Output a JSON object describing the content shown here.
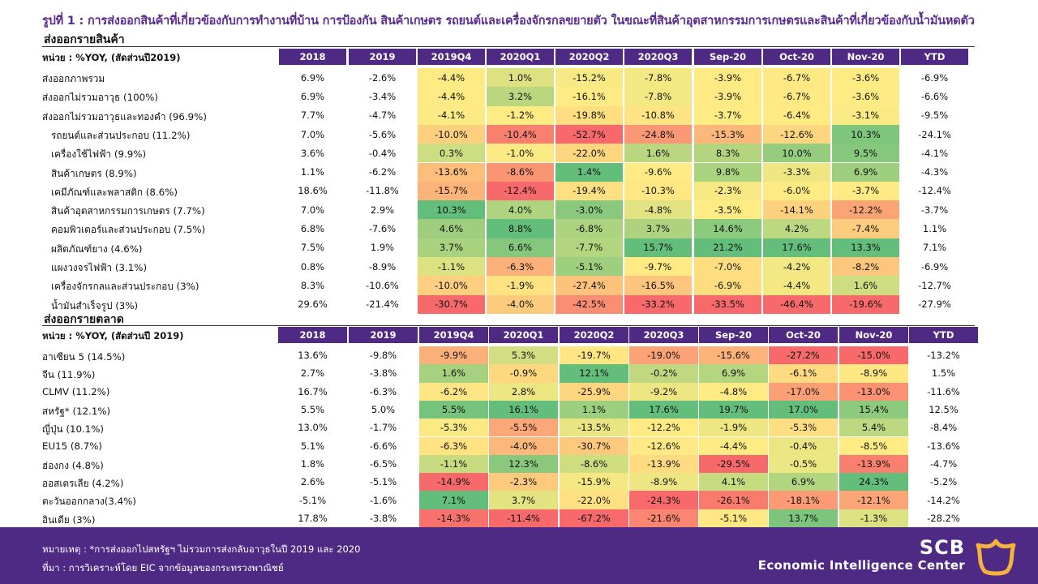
{
  "title": "รูปที่  1 : การส่งออกสินค้าที่เกี่ยวข้องกับการทำงานที่บ้าน  การป้องกัน  สินค้าเกษตร  รถยนต์และเครื่องจักรกลขยายตัว  ในขณะที่สินค้าอุตสาหกรรมการเกษตรและสินค้าที่เกี่ยวข้องกับน้ำมันหดตัว",
  "colors": {
    "purple": "#4e2a84",
    "green_strong": "#63be7b",
    "yellow": "#ffeb84",
    "red_strong": "#f8696b"
  },
  "products": {
    "heading": "ส่งออกรายสินค้า",
    "unit": "หน่วย : %YOY, (สัดส่วนปี2019)",
    "columns": [
      "2018",
      "2019",
      "2019Q4",
      "2020Q1",
      "2020Q2",
      "2020Q3",
      "Sep-20",
      "Oct-20",
      "Nov-20",
      "YTD"
    ],
    "rows": [
      {
        "label": "ส่งออกภาพรวม",
        "values": [
          "6.9%",
          "-2.6%",
          "-4.4%",
          "1.0%",
          "-15.2%",
          "-7.8%",
          "-3.9%",
          "-6.7%",
          "-3.6%",
          "-6.9%"
        ]
      },
      {
        "label": "ส่งออกไม่รวมอาวุธ (100%)",
        "values": [
          "6.9%",
          "-3.4%",
          "-4.4%",
          "3.2%",
          "-16.1%",
          "-7.8%",
          "-3.9%",
          "-6.7%",
          "-3.6%",
          "-6.6%"
        ]
      },
      {
        "label": "ส่งออกไม่รวมอาวุธและทองคำ (96.9%)",
        "values": [
          "7.7%",
          "-4.7%",
          "-4.1%",
          "-1.2%",
          "-19.8%",
          "-10.8%",
          "-3.7%",
          "-6.4%",
          "-3.1%",
          "-9.5%"
        ]
      },
      {
        "label": "รถยนต์และส่วนประกอบ (11.2%)",
        "values": [
          "7.0%",
          "-5.6%",
          "-10.0%",
          "-10.4%",
          "-52.7%",
          "-24.8%",
          "-15.3%",
          "-12.6%",
          "10.3%",
          "-24.1%"
        ]
      },
      {
        "label": "เครื่องใช้ไฟฟ้า (9.9%)",
        "values": [
          "3.6%",
          "-0.4%",
          "0.3%",
          "-1.0%",
          "-22.0%",
          "1.6%",
          "8.3%",
          "10.0%",
          "9.5%",
          "-4.1%"
        ]
      },
      {
        "label": "สินค้าเกษตร   (8.9%)",
        "values": [
          "1.1%",
          "-6.2%",
          "-13.6%",
          "-8.6%",
          "1.4%",
          "-9.6%",
          "9.8%",
          "-3.3%",
          "6.9%",
          "-4.3%"
        ]
      },
      {
        "label": "เคมีภัณฑ์และพลาสติก (8.6%)",
        "values": [
          "18.6%",
          "-11.8%",
          "-15.7%",
          "-12.4%",
          "-19.4%",
          "-10.3%",
          "-2.3%",
          "-6.0%",
          "-3.7%",
          "-12.4%"
        ]
      },
      {
        "label": "สินค้าอุตสาหกรรมการเกษตร  (7.7%)",
        "values": [
          "7.0%",
          "2.9%",
          "10.3%",
          "4.0%",
          "-3.0%",
          "-4.8%",
          "-3.5%",
          "-14.1%",
          "-12.2%",
          "-3.7%"
        ]
      },
      {
        "label": "คอมพิวเตอร์และส่วนประกอบ (7.5%)",
        "values": [
          "6.8%",
          "-7.6%",
          "4.6%",
          "8.8%",
          "-6.8%",
          "3.7%",
          "14.6%",
          "4.2%",
          "-7.4%",
          "1.1%"
        ]
      },
      {
        "label": "ผลิตภัณฑ์ยาง (4.6%)",
        "values": [
          "7.5%",
          "1.9%",
          "3.7%",
          "6.6%",
          "-7.7%",
          "15.7%",
          "21.2%",
          "17.6%",
          "13.3%",
          "7.1%"
        ]
      },
      {
        "label": "แผงวงจรไฟฟ้า   (3.1%)",
        "values": [
          "0.8%",
          "-8.9%",
          "-1.1%",
          "-6.3%",
          "-5.1%",
          "-9.7%",
          "-7.0%",
          "-4.2%",
          "-8.2%",
          "-6.9%"
        ]
      },
      {
        "label": "เครื่องจักรกลและส่วนประกอบ (3%)",
        "values": [
          "8.3%",
          "-10.6%",
          "-10.0%",
          "-1.9%",
          "-27.4%",
          "-16.5%",
          "-6.9%",
          "-4.4%",
          "1.6%",
          "-12.7%"
        ]
      },
      {
        "label": "น้ำมันสำเร็จรูป  (3%)",
        "values": [
          "29.6%",
          "-21.4%",
          "-30.7%",
          "-4.0%",
          "-42.5%",
          "-33.2%",
          "-33.5%",
          "-46.4%",
          "-19.6%",
          "-27.9%"
        ]
      }
    ]
  },
  "markets": {
    "heading": "ส่งออกรายตลาด",
    "unit": "หน่วย : %YOY, (สัดส่วนปี 2019)",
    "columns": [
      "2018",
      "2019",
      "2019Q4",
      "2020Q1",
      "2020Q2",
      "2020Q3",
      "Sep-20",
      "Oct-20",
      "Nov-20",
      "YTD"
    ],
    "rows": [
      {
        "label": "อาเซียน 5 (14.5%)",
        "values": [
          "13.6%",
          "-9.8%",
          "-9.9%",
          "5.3%",
          "-19.7%",
          "-19.0%",
          "-15.6%",
          "-27.2%",
          "-15.0%",
          "-13.2%"
        ]
      },
      {
        "label": "จีน (11.9%)",
        "values": [
          "2.7%",
          "-3.8%",
          "1.6%",
          "-0.9%",
          "12.1%",
          "-0.2%",
          "6.9%",
          "-6.1%",
          "-8.9%",
          "1.5%"
        ]
      },
      {
        "label": "CLMV (11.2%)",
        "values": [
          "16.7%",
          "-6.3%",
          "-6.2%",
          "2.8%",
          "-25.9%",
          "-9.2%",
          "-4.8%",
          "-17.0%",
          "-13.0%",
          "-11.6%"
        ]
      },
      {
        "label": "สหรัฐ* (12.1%)",
        "values": [
          "5.5%",
          "5.0%",
          "5.5%",
          "16.1%",
          "1.1%",
          "17.6%",
          "19.7%",
          "17.0%",
          "15.4%",
          "12.5%"
        ]
      },
      {
        "label": "ญี่ปุ่น (10.1%)",
        "values": [
          "13.0%",
          "-1.7%",
          "-5.3%",
          "-5.5%",
          "-13.5%",
          "-12.2%",
          "-1.9%",
          "-5.3%",
          "5.4%",
          "-8.4%"
        ]
      },
      {
        "label": "EU15 (8.7%)",
        "values": [
          "5.1%",
          "-6.6%",
          "-6.3%",
          "-4.0%",
          "-30.7%",
          "-12.6%",
          "-4.4%",
          "-0.4%",
          "-8.5%",
          "-13.6%"
        ]
      },
      {
        "label": "ฮ่องกง (4.8%)",
        "values": [
          "1.8%",
          "-6.5%",
          "-1.1%",
          "12.3%",
          "-8.6%",
          "-13.9%",
          "-29.5%",
          "-0.5%",
          "-13.9%",
          "-4.7%"
        ]
      },
      {
        "label": "ออสเตรเลีย  (4.2%)",
        "values": [
          "2.6%",
          "-5.1%",
          "-14.9%",
          "-2.3%",
          "-15.9%",
          "-8.9%",
          "4.1%",
          "6.9%",
          "24.3%",
          "-5.2%"
        ]
      },
      {
        "label": "ตะวันออกกลาง(3.4%)",
        "values": [
          "-5.1%",
          "-1.6%",
          "7.1%",
          "3.7%",
          "-22.0%",
          "-24.3%",
          "-26.1%",
          "-18.1%",
          "-12.1%",
          "-14.2%"
        ]
      },
      {
        "label": "อินเดีย  (3%)",
        "values": [
          "17.8%",
          "-3.8%",
          "-14.3%",
          "-11.4%",
          "-67.2%",
          "-21.6%",
          "-5.1%",
          "13.7%",
          "-1.3%",
          "-28.2%"
        ]
      }
    ]
  },
  "footer": {
    "note": "หมายเหตุ : *การส่งออกไปสหรัฐฯ  ไม่รวมการส่งกลับอาวุธในปี 2019 และ 2020",
    "source": "ที่มา : การวิเคราะห์โดย  EIC จากข้อมูลของกระทรวงพาณิชย์",
    "brand_top": "SCB",
    "brand_bottom": "Economic Intelligence Center"
  }
}
